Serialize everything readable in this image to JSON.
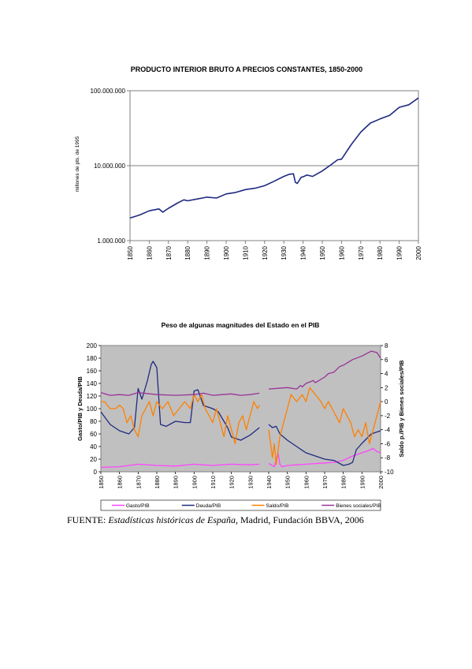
{
  "chart_data": [
    {
      "type": "line",
      "title": "PRODUCTO INTERIOR BRUTO A PRECIOS CONSTANTES, 1850-2000",
      "ylabel": "millones de pts. de 1995",
      "xlabel": "",
      "yscale": "log",
      "ylim": [
        1000000,
        100000000
      ],
      "xlim": [
        1850,
        2000
      ],
      "yticks": [
        "1.000.000",
        "10.000.000",
        "100.000.000"
      ],
      "xticks": [
        "1850",
        "1860",
        "1870",
        "1880",
        "1890",
        "1900",
        "1910",
        "1920",
        "1930",
        "1940",
        "1950",
        "1960",
        "1970",
        "1980",
        "1990",
        "2000"
      ],
      "grid": "horizontal",
      "series": [
        {
          "color": "#1f2a80",
          "x": [
            1850,
            1855,
            1860,
            1865,
            1867,
            1870,
            1875,
            1878,
            1880,
            1885,
            1890,
            1895,
            1900,
            1905,
            1910,
            1915,
            1920,
            1925,
            1930,
            1933,
            1935,
            1936,
            1937,
            1939,
            1940,
            1942,
            1945,
            1950,
            1955,
            1958,
            1960,
            1965,
            1970,
            1975,
            1980,
            1985,
            1990,
            1995,
            2000
          ],
          "y": [
            2000000,
            2200000,
            2500000,
            2650000,
            2400000,
            2700000,
            3200000,
            3500000,
            3400000,
            3600000,
            3800000,
            3700000,
            4200000,
            4400000,
            4800000,
            5000000,
            5400000,
            6200000,
            7200000,
            7700000,
            7800000,
            6000000,
            5800000,
            7000000,
            7100000,
            7500000,
            7200000,
            8500000,
            10500000,
            12000000,
            12200000,
            19000000,
            28000000,
            37000000,
            42000000,
            47000000,
            60000000,
            65000000,
            80000000
          ]
        }
      ]
    },
    {
      "type": "line",
      "title": "Peso de algunas magnitudes del Estado en el PIB",
      "ylabel": "Gasto/PIB y Deuda/PIB",
      "y2label": "Saldo p./PIB y Bienes sociales/PIB",
      "xlabel": "",
      "ylim": [
        0,
        200
      ],
      "y2lim": [
        -10,
        8
      ],
      "xlim": [
        1850,
        2000
      ],
      "yticks": [
        0,
        20,
        40,
        60,
        80,
        100,
        120,
        140,
        160,
        180,
        200
      ],
      "y2ticks": [
        -10,
        -8,
        -6,
        -4,
        -2,
        0,
        2,
        4,
        6,
        8
      ],
      "xticks": [
        "1850",
        "1860",
        "1870",
        "1880",
        "1890",
        "1900",
        "1910",
        "1920",
        "1930",
        "1940",
        "1950",
        "1960",
        "1970",
        "1980",
        "1990",
        "2000"
      ],
      "background": "#c0c0c0",
      "legend_position": "bottom",
      "series": [
        {
          "name": "Gasto/PIB",
          "color": "#ff44ff",
          "axis": "left",
          "x": [
            1850,
            1860,
            1870,
            1880,
            1890,
            1900,
            1910,
            1920,
            1930,
            1935,
            null,
            1940,
            1943,
            1945,
            1946,
            1947,
            1950,
            1955,
            1960,
            1965,
            1970,
            1975,
            1980,
            1985,
            1990,
            1993,
            1996,
            1998,
            2000
          ],
          "y": [
            7,
            8,
            12,
            10,
            9,
            12,
            10,
            12,
            11,
            12,
            null,
            13,
            8,
            30,
            12,
            8,
            10,
            11,
            12,
            13,
            14,
            15,
            18,
            25,
            30,
            33,
            37,
            32,
            30
          ]
        },
        {
          "name": "Deuda/PIB",
          "color": "#1f2a80",
          "axis": "left",
          "x": [
            1850,
            1855,
            1860,
            1865,
            1868,
            1870,
            1872,
            1875,
            1877,
            1878,
            1880,
            1882,
            1885,
            1890,
            1895,
            1898,
            1900,
            1902,
            1905,
            1910,
            1913,
            1915,
            1918,
            1920,
            1925,
            1930,
            1935,
            null,
            1940,
            1942,
            1944,
            1946,
            1950,
            1955,
            1960,
            1965,
            1970,
            1975,
            1980,
            1983,
            1985,
            1987,
            1990,
            1995,
            2000
          ],
          "y": [
            95,
            75,
            65,
            60,
            70,
            132,
            115,
            145,
            170,
            175,
            165,
            75,
            72,
            80,
            78,
            78,
            128,
            130,
            105,
            100,
            95,
            85,
            70,
            55,
            50,
            58,
            70,
            null,
            75,
            70,
            72,
            60,
            50,
            40,
            30,
            25,
            20,
            18,
            10,
            12,
            15,
            35,
            45,
            60,
            65
          ]
        },
        {
          "name": "Saldo/PIB",
          "color": "#ff8000",
          "axis": "right",
          "x": [
            1850,
            1852,
            1855,
            1858,
            1860,
            1862,
            1864,
            1866,
            1868,
            1870,
            1872,
            1874,
            1876,
            1878,
            1880,
            1883,
            1886,
            1889,
            1892,
            1895,
            1898,
            1900,
            1902,
            1904,
            1906,
            1908,
            1910,
            1912,
            1914,
            1916,
            1918,
            1920,
            1922,
            1924,
            1926,
            1928,
            1930,
            1932,
            1934,
            1935,
            null,
            1940,
            1941,
            1942,
            1943,
            1944,
            1946,
            1948,
            1950,
            1952,
            1955,
            1958,
            1960,
            1962,
            1965,
            1968,
            1970,
            1972,
            1974,
            1976,
            1978,
            1980,
            1982,
            1984,
            1986,
            1988,
            1990,
            1992,
            1994,
            1996,
            1998,
            2000
          ],
          "y": [
            0,
            0,
            -1,
            -1,
            -0.5,
            -1,
            -3,
            -2,
            -4,
            -5,
            -2,
            -1,
            0,
            -2,
            0,
            -1,
            0,
            -2,
            -1,
            0,
            -1,
            1,
            0,
            1,
            -1,
            -2,
            -3,
            -1,
            -3,
            -5,
            -2,
            -4,
            -6,
            -3,
            -2,
            -4,
            -2,
            0,
            -1,
            -0.5,
            null,
            -4,
            -6,
            -8,
            -6,
            -9,
            -5,
            -3,
            -1,
            1,
            0,
            1,
            0,
            2,
            1,
            0,
            -1,
            0,
            -1,
            -2,
            -3,
            -1,
            -2,
            -3,
            -5,
            -4,
            -5,
            -3,
            -6,
            -4,
            -2,
            0
          ]
        },
        {
          "name": "Bienes sociales/PIB",
          "color": "#993399",
          "axis": "right",
          "x": [
            1850,
            1855,
            1860,
            1865,
            1870,
            1880,
            1890,
            1900,
            1905,
            1910,
            1915,
            1920,
            1925,
            1930,
            1935,
            null,
            1940,
            1945,
            1950,
            1955,
            1957,
            1958,
            1960,
            1964,
            1965,
            1970,
            1972,
            1975,
            1978,
            1980,
            1985,
            1990,
            1995,
            1998,
            2000
          ],
          "y": [
            1.3,
            0.9,
            1.0,
            0.9,
            1.3,
            1.0,
            0.9,
            1.0,
            1.2,
            0.9,
            1.0,
            1.1,
            0.9,
            1.0,
            1.2,
            null,
            1.8,
            1.9,
            2.0,
            1.8,
            2.3,
            2.1,
            2.6,
            3.0,
            2.7,
            3.5,
            4.0,
            4.2,
            5.0,
            5.2,
            6.0,
            6.5,
            7.2,
            7.0,
            6.2
          ]
        }
      ]
    }
  ],
  "source": {
    "prefix": "FUENTE: ",
    "italic": "Estadísticas históricas de España,",
    "suffix": " Madrid, Fundación BBVA, 2006"
  }
}
